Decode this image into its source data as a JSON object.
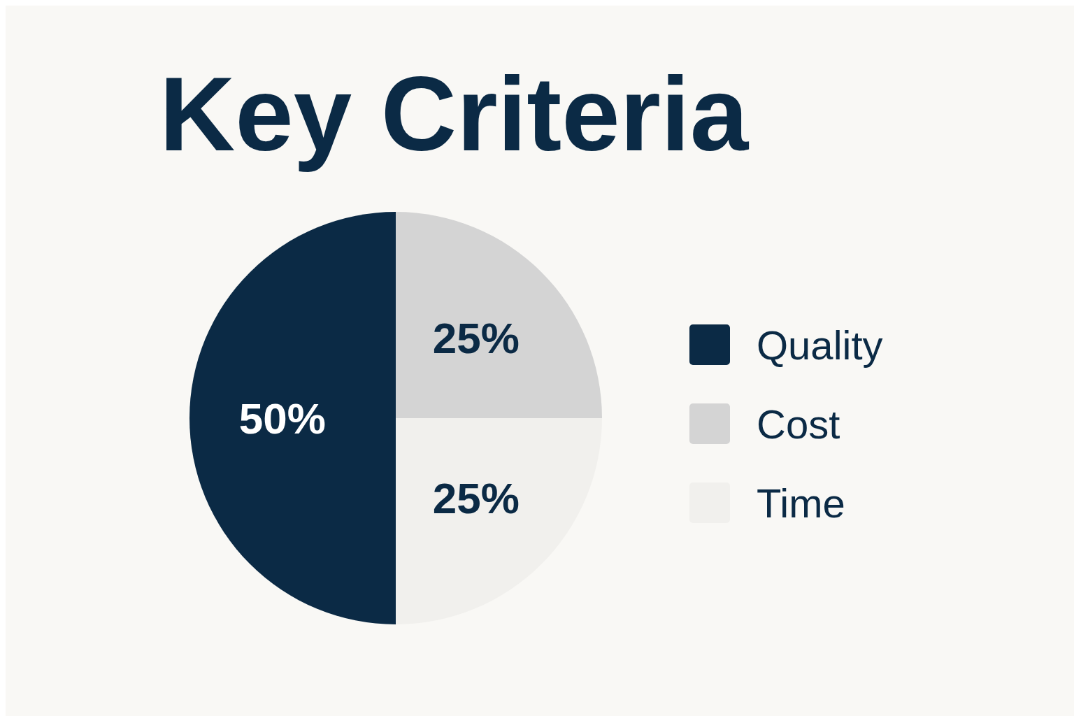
{
  "chart_data": {
    "type": "pie",
    "title": "Key Criteria",
    "categories": [
      "Quality",
      "Cost",
      "Time"
    ],
    "values": [
      50,
      25,
      25
    ],
    "colors": [
      "#0b2a45",
      "#d4d4d4",
      "#f1f0ed"
    ],
    "value_labels": [
      "50%",
      "25%",
      "25%"
    ],
    "legend": "right"
  }
}
